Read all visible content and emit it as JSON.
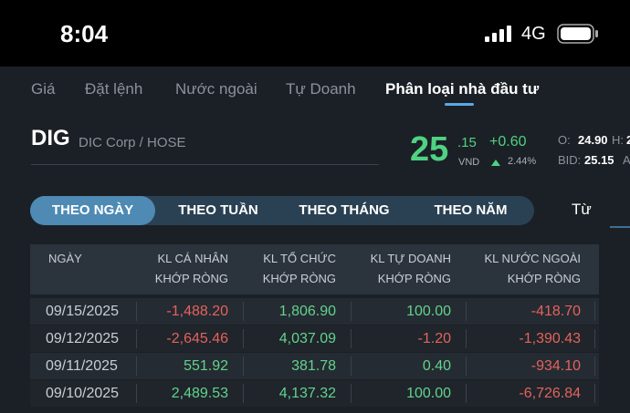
{
  "status": {
    "time": "8:04",
    "network": "4G"
  },
  "tabs": {
    "items": [
      "Giá",
      "Đặt lệnh",
      "Nước ngoài",
      "Tự Doanh",
      "Phân loại nhà đầu tư"
    ],
    "active": 4
  },
  "stock": {
    "symbol": "DIG",
    "name": "DIC Corp / HOSE",
    "price_int": "25",
    "price_dec": ".15",
    "currency": "VND",
    "change": "+0.60",
    "change_pct": "2.44%",
    "open_label": "O:",
    "open": "24.90",
    "high_label": "H:",
    "high": "2",
    "bid_label": "BID:",
    "bid": "25.15",
    "ask_label": "A"
  },
  "periods": {
    "items": [
      "THEO NGÀY",
      "THEO TUẦN",
      "THEO THÁNG",
      "THEO NĂM"
    ],
    "active": 0,
    "from_label": "Từ"
  },
  "table": {
    "headers": [
      [
        "NGÀY"
      ],
      [
        "KL CÁ NHÂN",
        "KHỚP RÒNG"
      ],
      [
        "KL TỔ CHỨC",
        "KHỚP RÒNG"
      ],
      [
        "KL TỰ DOANH",
        "KHỚP RÒNG"
      ],
      [
        "KL NƯỚC NGOÀI",
        "KHỚP RÒNG"
      ]
    ],
    "rows": [
      [
        "09/15/2025",
        "-1,488.20",
        "1,806.90",
        "100.00",
        "-418.70"
      ],
      [
        "09/12/2025",
        "-2,645.46",
        "4,037.09",
        "-1.20",
        "-1,390.43"
      ],
      [
        "09/11/2025",
        "551.92",
        "381.78",
        "0.40",
        "-934.10"
      ],
      [
        "09/10/2025",
        "2,489.53",
        "4,137.32",
        "100.00",
        "-6,726.84"
      ]
    ]
  }
}
